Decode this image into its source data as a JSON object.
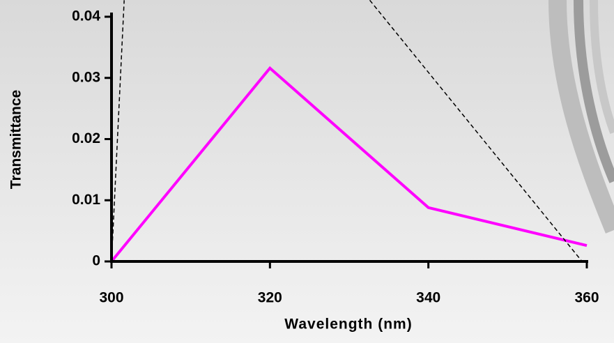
{
  "chart_data": {
    "type": "line",
    "x_label": "Wavelength (nm)",
    "y_label": "Transmittance",
    "series": [
      {
        "color": "#ff00ff",
        "dash": false,
        "x": [
          300,
          320,
          340,
          360
        ],
        "values": [
          0,
          0.0316,
          0.0088,
          0.0026
        ]
      },
      {
        "color": "#000000",
        "dash": true,
        "x": [
          300,
          301.6
        ],
        "values": [
          0,
          0.0427
        ]
      },
      {
        "color": "#000000",
        "dash": true,
        "x": [
          332.6,
          359.4
        ],
        "values": [
          0.0427,
          0
        ]
      }
    ],
    "xlim": [
      300,
      360
    ],
    "xticks": [
      300,
      320,
      340,
      360
    ],
    "ylim": [
      0,
      0.04
    ],
    "yticks": [
      0,
      0.01,
      0.02,
      0.03,
      0.04
    ],
    "grid": false
  }
}
